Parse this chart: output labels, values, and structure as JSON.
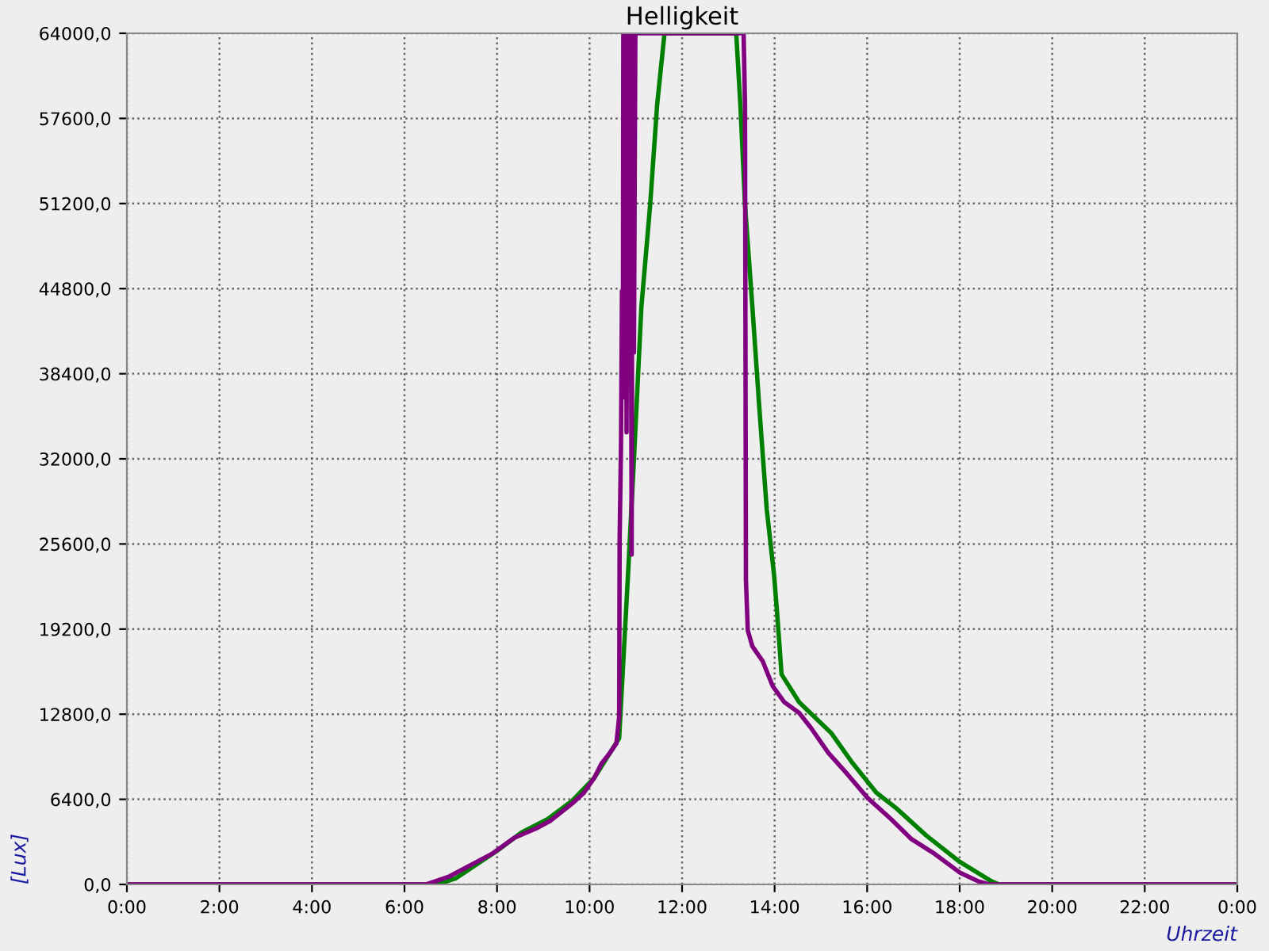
{
  "chart_data": {
    "type": "line",
    "title": "Helligkeit",
    "xlabel": "Uhrzeit",
    "ylabel": "[Lux]",
    "series": [
      {
        "color": "#008000",
        "x": [
          0,
          6.69,
          7.11,
          7.99,
          8.53,
          9.09,
          9.63,
          10.1,
          10.64,
          10.83,
          10.96,
          11.12,
          11.31,
          11.46,
          11.62,
          13.17,
          13.26,
          13.36,
          13.52,
          13.67,
          13.83,
          13.99,
          14.05,
          14.15,
          14.53,
          15.22,
          15.69,
          16.2,
          16.64,
          17.27,
          18.0,
          18.69,
          18.85,
          24
        ],
        "values": [
          0,
          0,
          460,
          2500,
          3900,
          4900,
          6300,
          8000,
          11000,
          23200,
          32000,
          43400,
          51100,
          58600,
          64000,
          64000,
          58600,
          51100,
          43400,
          35800,
          28200,
          23200,
          20600,
          15800,
          13700,
          11400,
          9100,
          6900,
          5700,
          3700,
          1700,
          230,
          0,
          0
        ]
      },
      {
        "color": "#800080",
        "x": [
          0,
          6.47,
          6.95,
          7.89,
          8.37,
          8.84,
          9.16,
          9.63,
          9.88,
          10.1,
          10.26,
          10.42,
          10.58,
          10.64,
          10.65,
          10.68,
          10.7,
          10.72,
          10.73,
          10.76,
          10.78,
          10.8,
          10.83,
          10.85,
          10.88,
          10.91,
          10.93,
          10.96,
          10.99,
          13.33,
          13.36,
          13.38,
          13.42,
          13.52,
          13.74,
          13.96,
          14.21,
          14.53,
          14.78,
          15.16,
          15.57,
          16.01,
          16.52,
          16.96,
          17.46,
          18.0,
          18.41,
          18.63,
          24
        ],
        "values": [
          0,
          0,
          570,
          2300,
          3500,
          4200,
          4800,
          6100,
          6900,
          8000,
          9100,
          9800,
          10600,
          12600,
          25900,
          33100,
          44600,
          36600,
          64000,
          42000,
          64000,
          34000,
          64000,
          38000,
          64000,
          24800,
          64000,
          40000,
          64000,
          64000,
          58600,
          22900,
          19100,
          17900,
          16800,
          14900,
          13700,
          12900,
          11800,
          9900,
          8300,
          6500,
          4900,
          3400,
          2300,
          900,
          230,
          0,
          0
        ]
      }
    ],
    "xlim": [
      0,
      24
    ],
    "xticks": [
      {
        "value": 0,
        "label": "0:00"
      },
      {
        "value": 2,
        "label": "2:00"
      },
      {
        "value": 4,
        "label": "4:00"
      },
      {
        "value": 6,
        "label": "6:00"
      },
      {
        "value": 8,
        "label": "8:00"
      },
      {
        "value": 10,
        "label": "10:00"
      },
      {
        "value": 12,
        "label": "12:00"
      },
      {
        "value": 14,
        "label": "14:00"
      },
      {
        "value": 16,
        "label": "16:00"
      },
      {
        "value": 18,
        "label": "18:00"
      },
      {
        "value": 20,
        "label": "20:00"
      },
      {
        "value": 22,
        "label": "22:00"
      },
      {
        "value": 24,
        "label": "0:00"
      }
    ],
    "ylim": [
      0,
      64000
    ],
    "yticks": [
      {
        "value": 0,
        "label": "0,0"
      },
      {
        "value": 6400,
        "label": "6400,0"
      },
      {
        "value": 12800,
        "label": "12800,0"
      },
      {
        "value": 19200,
        "label": "19200,0"
      },
      {
        "value": 25600,
        "label": "25600,0"
      },
      {
        "value": 32000,
        "label": "32000,0"
      },
      {
        "value": 38400,
        "label": "38400,0"
      },
      {
        "value": 44800,
        "label": "44800,0"
      },
      {
        "value": 51200,
        "label": "51200,0"
      },
      {
        "value": 57600,
        "label": "57600,0"
      },
      {
        "value": 64000,
        "label": "64000,0"
      }
    ],
    "grid": true,
    "legend": false,
    "marker": "none",
    "line_style": "solid"
  }
}
